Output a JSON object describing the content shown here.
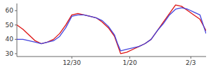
{
  "chart_data": {
    "type": "line",
    "x": [
      0,
      2,
      4,
      6,
      8,
      10,
      12,
      14,
      16,
      18,
      20,
      22,
      24,
      26,
      28,
      30,
      32,
      33,
      34,
      36,
      38,
      40,
      42,
      44,
      46,
      48,
      50,
      52,
      54,
      56,
      58,
      60,
      62
    ],
    "series": [
      {
        "color": "#dd1111",
        "values": [
          50,
          47,
          43,
          39,
          37,
          38,
          40,
          44,
          50,
          57,
          58,
          57,
          56,
          55,
          52,
          48,
          42,
          36,
          30,
          31,
          33,
          35,
          37,
          40,
          46,
          52,
          58,
          64,
          63,
          60,
          57,
          54,
          46
        ]
      },
      {
        "color": "#4444dd",
        "values": [
          40,
          40,
          39,
          38,
          37,
          38,
          39,
          42,
          48,
          56,
          57,
          57,
          56,
          55,
          53,
          49,
          43,
          37,
          32,
          33,
          34,
          35,
          37,
          40,
          46,
          51,
          57,
          61,
          62,
          61,
          59,
          57,
          44
        ]
      }
    ],
    "xlim": [
      0,
      62
    ],
    "xticks": [
      {
        "value": 18,
        "label": "12/30"
      },
      {
        "value": 37,
        "label": "1/20"
      },
      {
        "value": 57,
        "label": "2/3"
      }
    ],
    "ylim": [
      28,
      65
    ],
    "yticks": [
      30,
      40,
      50,
      60
    ],
    "grid": false
  }
}
